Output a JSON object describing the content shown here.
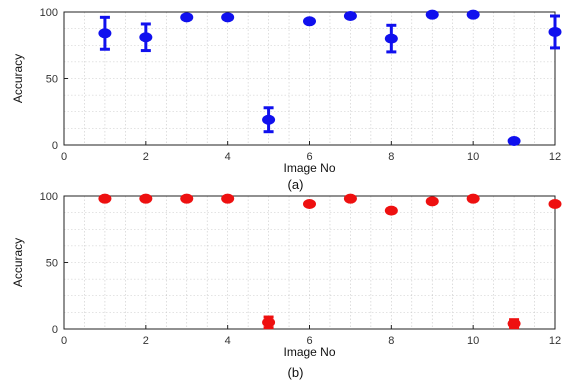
{
  "chart_data": [
    {
      "type": "scatter",
      "panel_label": "(a)",
      "xlabel": "Image No",
      "ylabel": "Accuracy",
      "xlim": [
        0,
        12
      ],
      "ylim": [
        0,
        100
      ],
      "xticks": [
        "0",
        "2",
        "4",
        "6",
        "8",
        "10",
        "12"
      ],
      "yticks": [
        "0",
        "50",
        "100"
      ],
      "grid": "minor dotted",
      "error_bars": true,
      "color": "#1010ee",
      "x": [
        1,
        2,
        3,
        4,
        5,
        6,
        7,
        8,
        9,
        10,
        11,
        12
      ],
      "y": [
        84,
        81,
        96,
        96,
        19,
        93,
        97,
        80,
        98,
        98,
        3,
        85
      ],
      "err": [
        12,
        10,
        0,
        0,
        9,
        0,
        0,
        10,
        0,
        0,
        0,
        12
      ]
    },
    {
      "type": "scatter",
      "panel_label": "(b)",
      "xlabel": "Image No",
      "ylabel": "Accuracy",
      "xlim": [
        0,
        12
      ],
      "ylim": [
        0,
        100
      ],
      "xticks": [
        "0",
        "2",
        "4",
        "6",
        "8",
        "10",
        "12"
      ],
      "yticks": [
        "0",
        "50",
        "100"
      ],
      "grid": "minor dotted",
      "error_bars": true,
      "color": "#ee1010",
      "x": [
        1,
        2,
        3,
        4,
        5,
        6,
        7,
        8,
        9,
        10,
        11,
        12
      ],
      "y": [
        98,
        98,
        98,
        98,
        5,
        94,
        98,
        89,
        96,
        98,
        4,
        94
      ],
      "err": [
        0,
        0,
        0,
        0,
        4,
        0,
        0,
        0,
        0,
        0,
        3,
        0
      ]
    }
  ]
}
